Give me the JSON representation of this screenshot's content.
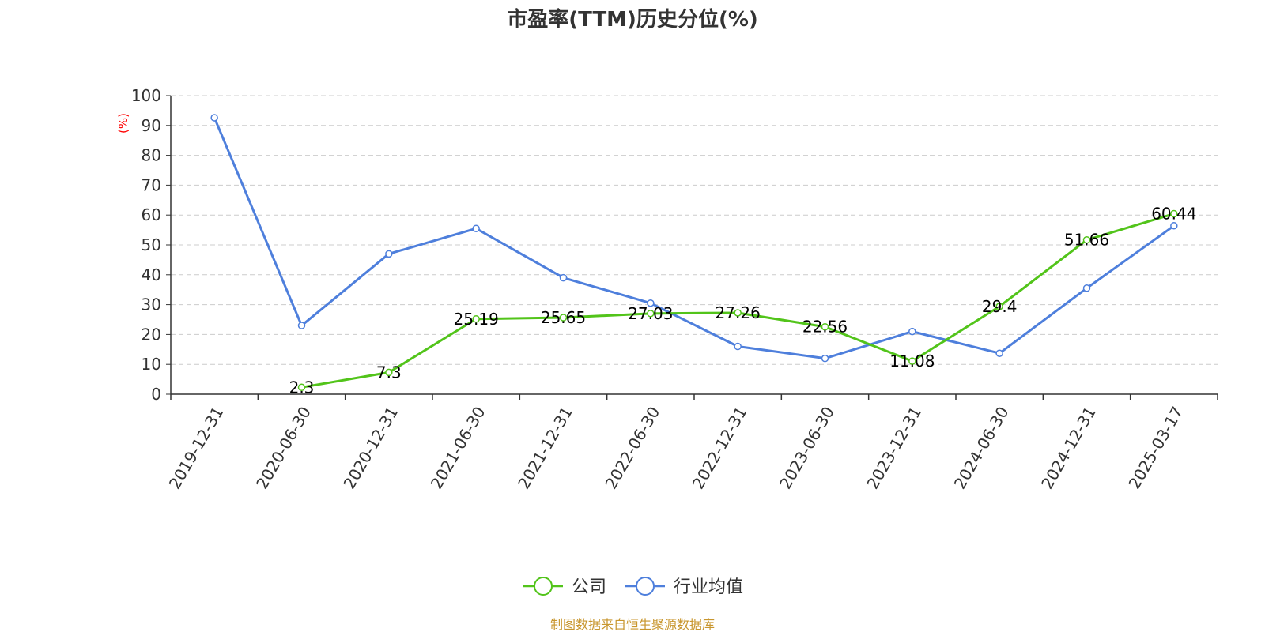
{
  "chart_data": {
    "type": "line",
    "title": "市盈率(TTM)历史分位(%)",
    "ylabel": "(%)",
    "ylabel_color": "#ff0000",
    "ylim": [
      0,
      100
    ],
    "yticks": [
      0,
      10,
      20,
      30,
      40,
      50,
      60,
      70,
      80,
      90,
      100
    ],
    "categories": [
      "2019-12-31",
      "2020-06-30",
      "2020-12-31",
      "2021-06-30",
      "2021-12-31",
      "2022-06-30",
      "2022-12-31",
      "2023-06-30",
      "2023-12-31",
      "2024-06-30",
      "2024-12-31",
      "2025-03-17"
    ],
    "grid": true,
    "legend_position": "bottom-center",
    "series": [
      {
        "name": "公司",
        "color": "#52c41a",
        "values": [
          null,
          2.3,
          7.3,
          25.19,
          25.65,
          27.03,
          27.26,
          22.56,
          11.08,
          29.4,
          51.66,
          60.44
        ],
        "labels": [
          "",
          "2.3",
          "7.3",
          "25.19",
          "25.65",
          "27.03",
          "27.26",
          "22.56",
          "11.08",
          "29.4",
          "51.66",
          "60.44"
        ]
      },
      {
        "name": "行业均值",
        "color": "#4e7fdc",
        "values": [
          92.6,
          23.0,
          47.0,
          55.5,
          39.0,
          30.5,
          16.0,
          12.0,
          21.0,
          13.7,
          35.5,
          56.4
        ]
      }
    ]
  },
  "footer": {
    "source": "制图数据来自恒生聚源数据库",
    "color": "#c8962e"
  }
}
